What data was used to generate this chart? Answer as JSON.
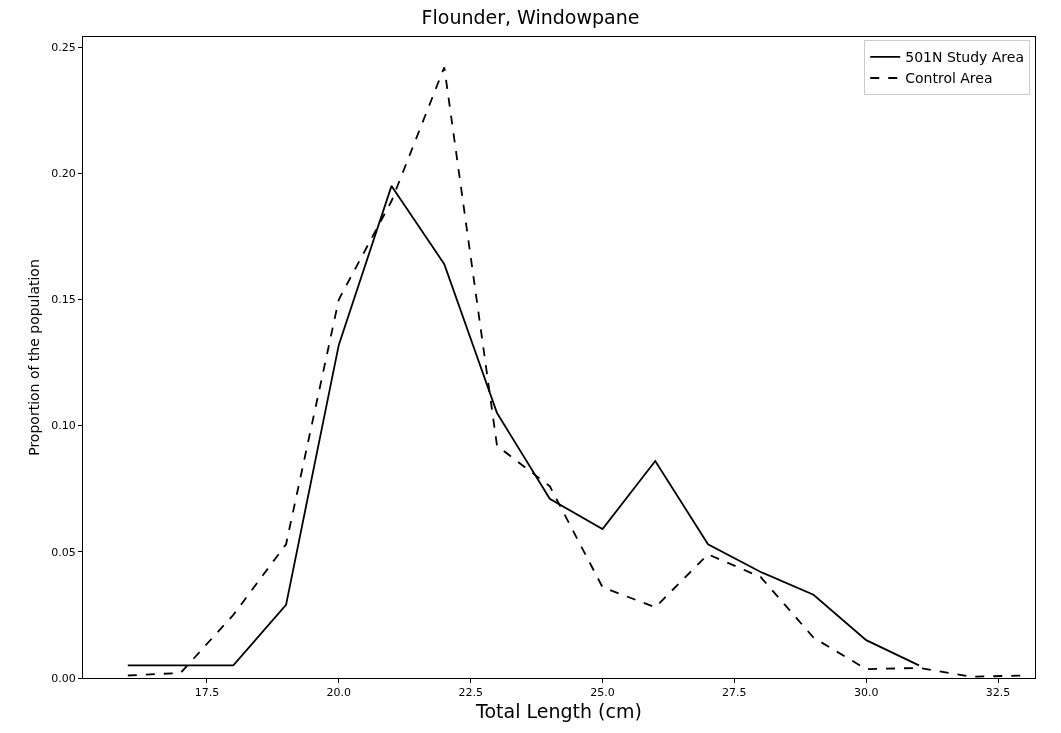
{
  "chart_data": {
    "type": "line",
    "title": "Flounder, Windowpane",
    "xlabel": "Total Length (cm)",
    "ylabel": "Proportion of the population",
    "xlim": [
      15.15,
      33.2
    ],
    "xticks": [
      17.5,
      {
        "value": 20,
        "label": "20.0"
      },
      22.5,
      {
        "value": 25,
        "label": "25.0"
      },
      27.5,
      {
        "value": 30,
        "label": "30.0"
      },
      32.5
    ],
    "ylim": [
      0,
      0.254
    ],
    "yticks": [
      {
        "value": 0,
        "label": "0.00"
      },
      0.05,
      {
        "value": 0.1,
        "label": "0.10"
      },
      0.15,
      {
        "value": 0.2,
        "label": "0.20"
      },
      0.25
    ],
    "legend": "top right",
    "marker": "none",
    "series": [
      {
        "name": "501N Study Area",
        "color": "#000000",
        "line_style": "solid",
        "x": [
          16,
          17,
          18,
          19,
          20,
          21,
          22,
          23,
          24,
          25,
          26,
          27,
          28,
          29,
          30,
          31
        ],
        "values": [
          0.005,
          0.005,
          0.005,
          0.029,
          0.132,
          0.195,
          0.164,
          0.105,
          0.071,
          0.059,
          0.086,
          0.053,
          0.042,
          0.033,
          0.015,
          0.005
        ]
      },
      {
        "name": "Control Area",
        "color": "#000000",
        "line_style": "dashed",
        "x": [
          16,
          17,
          18,
          19,
          20,
          21,
          22,
          23,
          24,
          25,
          26,
          27,
          28,
          29,
          30,
          31,
          32,
          33
        ],
        "values": [
          0.001,
          0.002,
          0.025,
          0.053,
          0.15,
          0.189,
          0.242,
          0.092,
          0.076,
          0.036,
          0.028,
          0.049,
          0.04,
          0.016,
          0.0035,
          0.004,
          0.0005,
          0.001
        ]
      }
    ]
  }
}
